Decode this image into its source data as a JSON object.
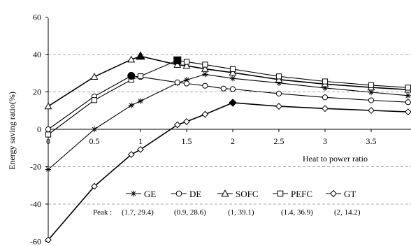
{
  "chart_data": {
    "type": "line",
    "title": "",
    "xlabel": "Heat to power ratio",
    "ylabel": "Energy saving ratio(%)",
    "xlim": [
      0,
      3.9
    ],
    "ylim": [
      -60,
      60
    ],
    "x_ticks": [
      "0",
      "0.5",
      "1",
      "1.5",
      "2",
      "2.5",
      "3",
      "3.5"
    ],
    "y_ticks": [
      "60",
      "40",
      "20",
      "0",
      "-20",
      "-40",
      "-60"
    ],
    "grid": "horizontal dashed",
    "legend_position": "bottom-center",
    "series": [
      {
        "name": "GE",
        "marker": "asterisk",
        "points": [
          [
            0,
            -21.5
          ],
          [
            0.5,
            0
          ],
          [
            0.9,
            12.8
          ],
          [
            1.0,
            15.1
          ],
          [
            1.4,
            24.7
          ],
          [
            1.5,
            26.4
          ],
          [
            1.7,
            29.4
          ],
          [
            2.0,
            27.2
          ],
          [
            2.5,
            24.8
          ],
          [
            3.0,
            22.1
          ],
          [
            3.5,
            19.8
          ],
          [
            3.9,
            18.0
          ]
        ]
      },
      {
        "name": "DE",
        "marker": "circle",
        "points": [
          [
            0,
            0
          ],
          [
            0.5,
            17.6
          ],
          [
            0.9,
            28.6
          ],
          [
            1.0,
            28.0
          ],
          [
            1.4,
            25.1
          ],
          [
            1.5,
            24.5
          ],
          [
            1.7,
            23.3
          ],
          [
            1.9,
            21.8
          ],
          [
            2.0,
            21.5
          ],
          [
            2.5,
            19.1
          ],
          [
            3.0,
            17.1
          ],
          [
            3.5,
            15.5
          ],
          [
            3.9,
            14.5
          ]
        ]
      },
      {
        "name": "SOFC",
        "marker": "triangle",
        "points": [
          [
            0,
            12.3
          ],
          [
            0.5,
            28.1
          ],
          [
            0.9,
            37.3
          ],
          [
            1.0,
            39.1
          ],
          [
            1.4,
            34.5
          ],
          [
            1.5,
            34.0
          ],
          [
            1.7,
            32.3
          ],
          [
            2.0,
            30.3
          ],
          [
            2.5,
            26.6
          ],
          [
            3.0,
            24.2
          ],
          [
            3.5,
            22.4
          ],
          [
            3.9,
            21.2
          ]
        ]
      },
      {
        "name": "PEFC",
        "marker": "square",
        "points": [
          [
            0,
            -2.8
          ],
          [
            0.5,
            15.6
          ],
          [
            0.9,
            26.5
          ],
          [
            1.0,
            28.4
          ],
          [
            1.4,
            36.9
          ],
          [
            1.5,
            36.1
          ],
          [
            1.7,
            34.6
          ],
          [
            2.0,
            32.2
          ],
          [
            2.5,
            28.3
          ],
          [
            3.0,
            25.6
          ],
          [
            3.5,
            23.6
          ],
          [
            3.9,
            22.3
          ]
        ]
      },
      {
        "name": "GT",
        "marker": "diamond",
        "points": [
          [
            0,
            -59.2
          ],
          [
            0.5,
            -30.5
          ],
          [
            0.9,
            -13.5
          ],
          [
            1.0,
            -10.8
          ],
          [
            1.4,
            2.4
          ],
          [
            1.5,
            4.1
          ],
          [
            1.7,
            8.0
          ],
          [
            2.0,
            14.2
          ],
          [
            2.5,
            12.3
          ],
          [
            3.0,
            11.1
          ],
          [
            3.5,
            10.1
          ],
          [
            3.9,
            9.3
          ]
        ]
      }
    ],
    "peaks": [
      {
        "series": "GE",
        "x": 1.7,
        "y": 29.4
      },
      {
        "series": "DE",
        "x": 0.9,
        "y": 28.6
      },
      {
        "series": "SOFC",
        "x": 1.0,
        "y": 39.1
      },
      {
        "series": "PEFC",
        "x": 1.4,
        "y": 36.9
      },
      {
        "series": "GT",
        "x": 2.0,
        "y": 14.2
      }
    ],
    "peak_label": "Peak :",
    "peak_texts": [
      "(1.7, 29.4)",
      "(0.9, 28.6)",
      "(1, 39.1)",
      "(1.4, 36.9)",
      "(2, 14.2)"
    ]
  }
}
